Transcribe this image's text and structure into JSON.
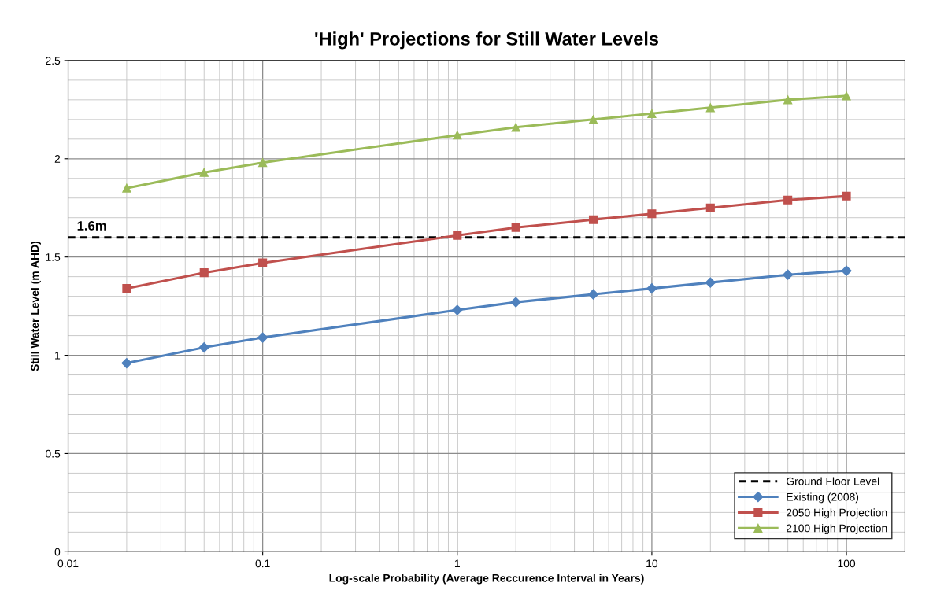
{
  "chart_data": {
    "type": "line",
    "title": "'High' Projections for Still Water Levels",
    "xlabel": "Log-scale Probability (Average Reccurence Interval in Years)",
    "ylabel": "Still Water Level (m AHD)",
    "x": [
      0.02,
      0.05,
      0.1,
      1,
      2,
      5,
      10,
      20,
      50,
      100
    ],
    "series": [
      {
        "name": "Ground Floor Level",
        "color": "#000000",
        "x": [
          0.01,
          200
        ],
        "values": [
          1.6,
          1.6
        ],
        "marker": "none",
        "line_style": "dashed"
      },
      {
        "name": "Existing (2008)",
        "color": "#4f81bd",
        "marker": "diamond",
        "values": [
          0.96,
          1.04,
          1.09,
          1.23,
          1.27,
          1.31,
          1.34,
          1.37,
          1.41,
          1.43
        ]
      },
      {
        "name": "2050 High Projection",
        "color": "#c0504d",
        "marker": "square",
        "values": [
          1.34,
          1.42,
          1.47,
          1.61,
          1.65,
          1.69,
          1.72,
          1.75,
          1.79,
          1.81
        ]
      },
      {
        "name": "2100 High Projection",
        "color": "#9bbb59",
        "marker": "triangle",
        "values": [
          1.85,
          1.93,
          1.98,
          2.12,
          2.16,
          2.2,
          2.23,
          2.26,
          2.3,
          2.32
        ]
      }
    ],
    "annotations": [
      {
        "text": "1.6m",
        "x": 0.01,
        "y": 1.6
      }
    ],
    "log": "x",
    "xlim": [
      0.01,
      200
    ],
    "xticks": [
      0.01,
      0.1,
      1,
      10,
      100
    ],
    "ylim": [
      0,
      2.5
    ],
    "yticks": [
      0,
      0.5,
      1,
      1.5,
      2,
      2.5
    ],
    "grid": true,
    "legend": "bottom right"
  }
}
